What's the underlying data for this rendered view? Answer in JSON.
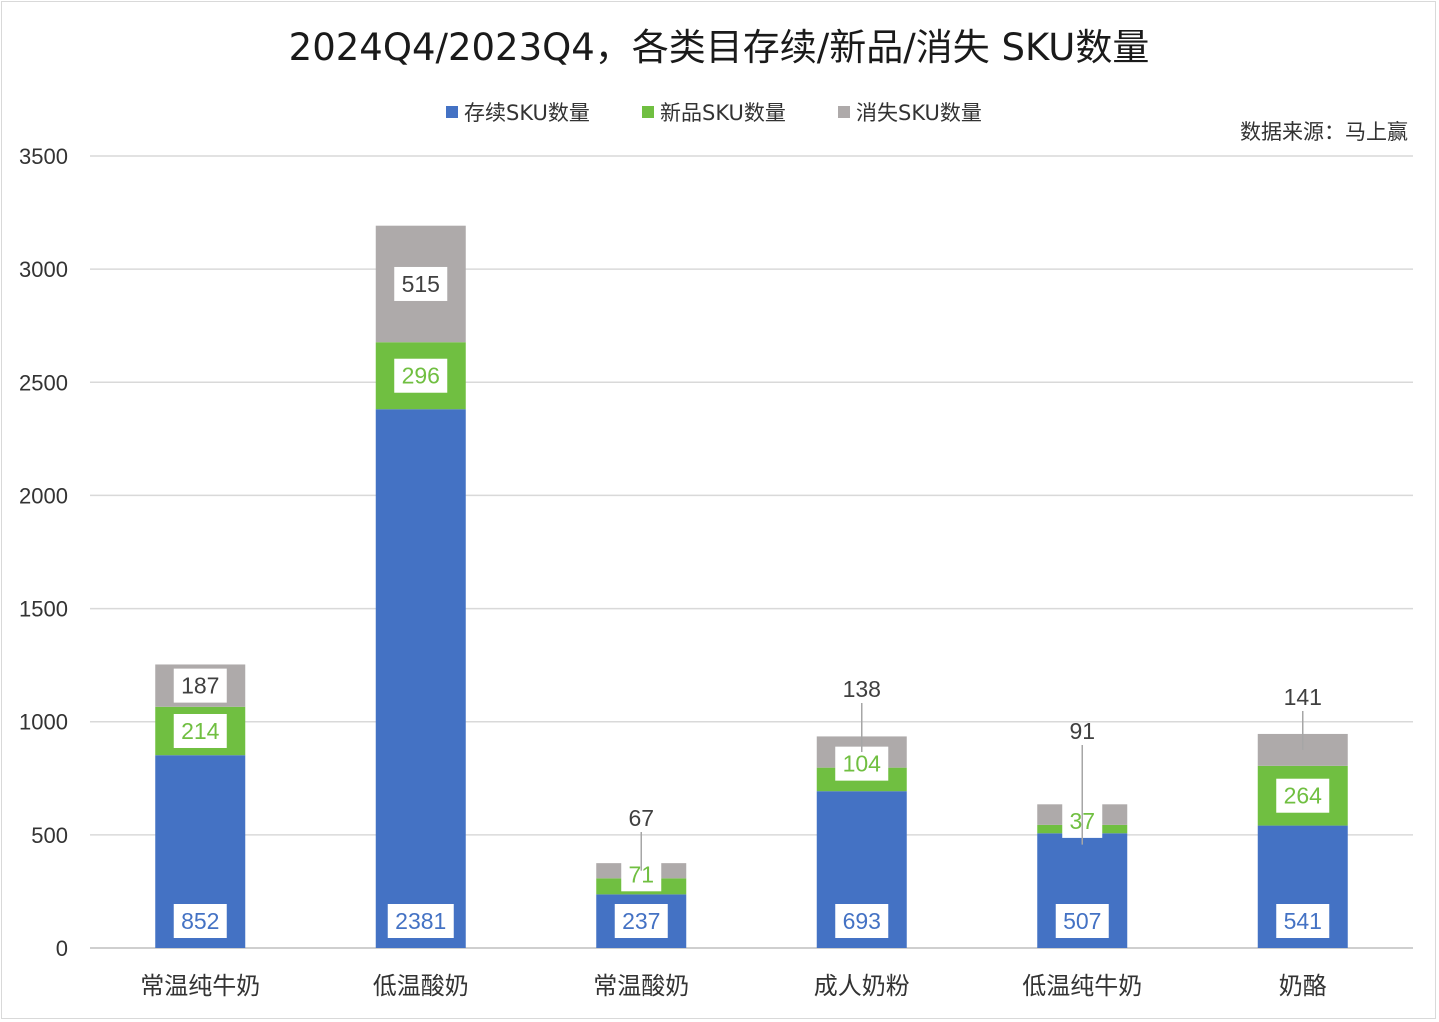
{
  "chart_data": {
    "type": "bar",
    "stacked": true,
    "title": "2024Q4/2023Q4，各类目存续/新品/消失 SKU数量",
    "source_note": "数据来源：马上赢",
    "categories": [
      "常温纯牛奶",
      "低温酸奶",
      "常温酸奶",
      "成人奶粉",
      "低温纯牛奶",
      "奶酪"
    ],
    "series": [
      {
        "name": "存续SKU数量",
        "color": "#4472c4",
        "values": [
          852,
          2381,
          237,
          693,
          507,
          541
        ]
      },
      {
        "name": "新品SKU数量",
        "color": "#70bf41",
        "values": [
          214,
          296,
          71,
          104,
          37,
          264
        ]
      },
      {
        "name": "消失SKU数量",
        "color": "#aeaaaa",
        "values": [
          187,
          515,
          67,
          138,
          91,
          141
        ]
      }
    ],
    "ylim": [
      0,
      3500
    ],
    "yticks": [
      0,
      500,
      1000,
      1500,
      2000,
      2500,
      3000,
      3500
    ],
    "grid": true,
    "legend_position": "top-center",
    "xlabel": "",
    "ylabel": ""
  }
}
